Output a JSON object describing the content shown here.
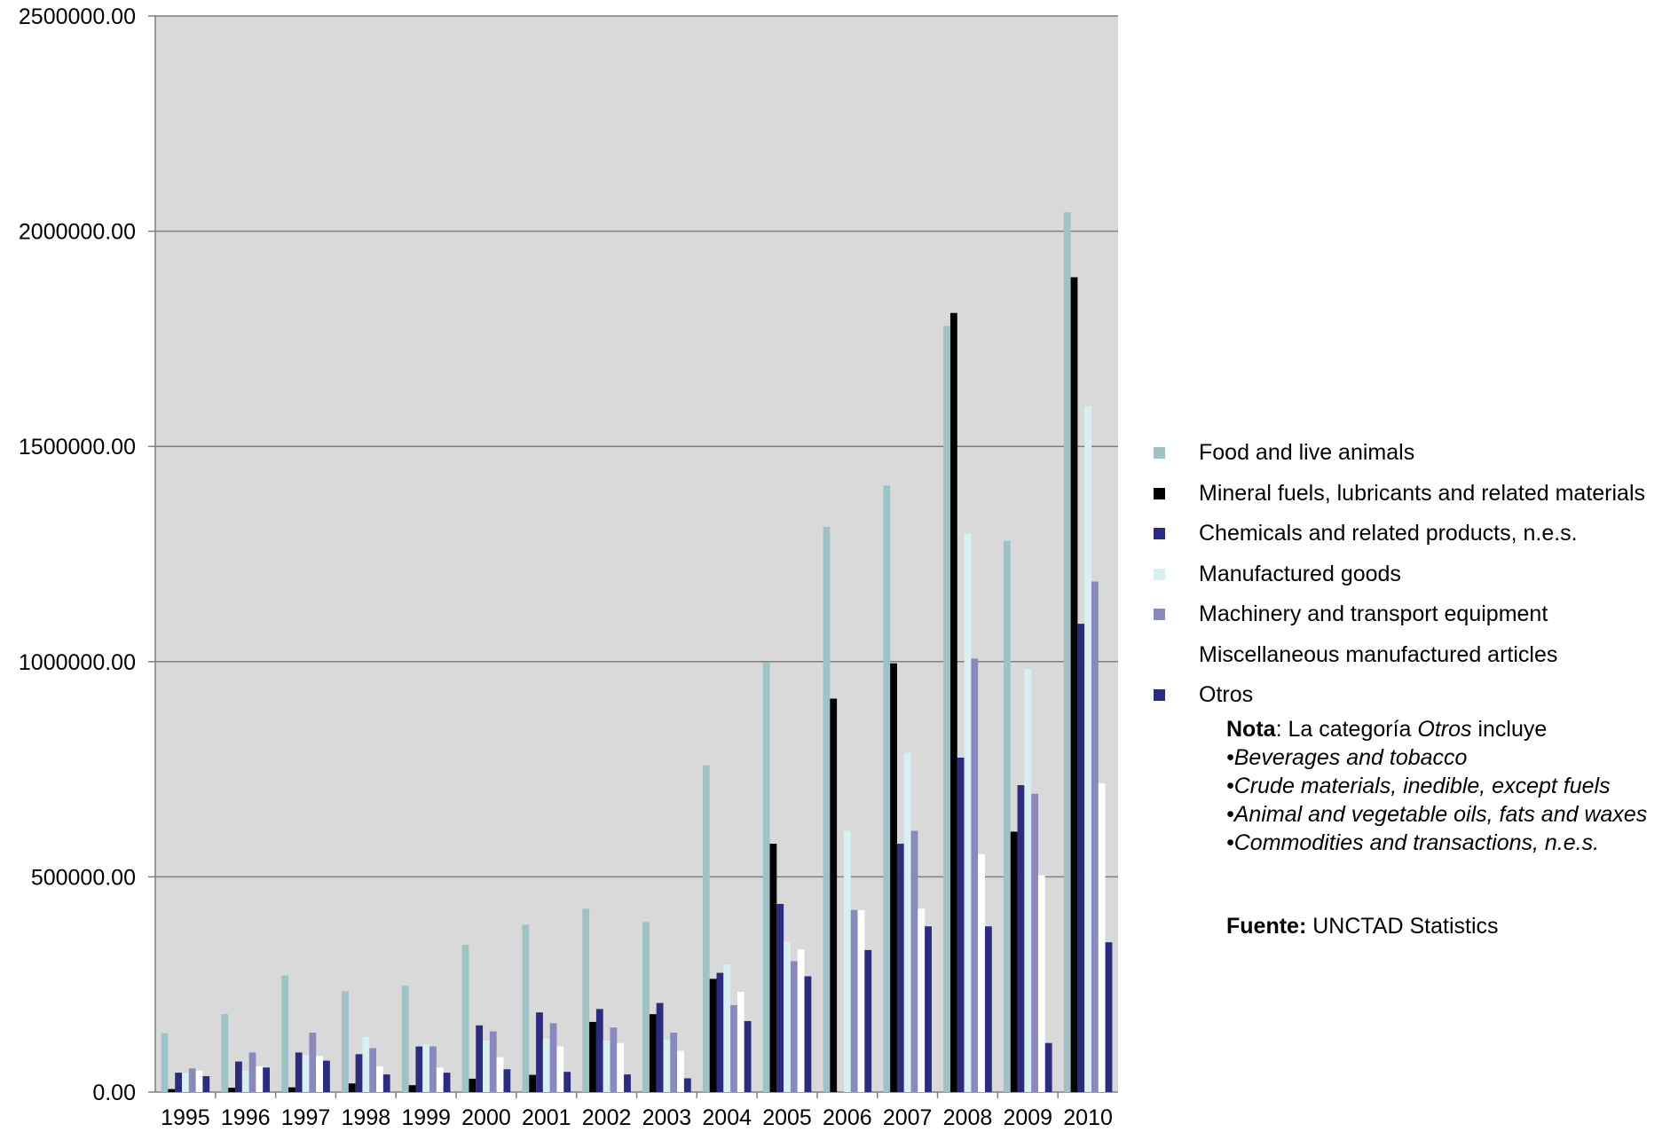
{
  "chart_data": {
    "type": "bar",
    "title": "",
    "xlabel": "",
    "ylabel": "",
    "ylim": [
      0,
      2500000
    ],
    "yticks": [
      "0.00",
      "500000.00",
      "1000000.00",
      "1500000.00",
      "2000000.00",
      "2500000.00"
    ],
    "grid": true,
    "legend_position": "right",
    "plot_background": "#d9d9d9",
    "categories": [
      "1995",
      "1996",
      "1997",
      "1998",
      "1999",
      "2000",
      "2001",
      "2002",
      "2003",
      "2004",
      "2005",
      "2006",
      "2007",
      "2008",
      "2009",
      "2010"
    ],
    "series": [
      {
        "name": "Food and live animals",
        "color": "#9dc3c6",
        "values": [
          137000,
          181000,
          271000,
          234000,
          247000,
          342000,
          389000,
          426000,
          395000,
          759000,
          998000,
          1313000,
          1409000,
          1780000,
          1281000,
          2044000
        ]
      },
      {
        "name": "Mineral fuels, lubricants and related materials",
        "color": "#000000",
        "values": [
          7000,
          10000,
          11000,
          20000,
          16000,
          31000,
          40000,
          163000,
          181000,
          263000,
          577000,
          914000,
          996000,
          1810000,
          605000,
          1893000
        ]
      },
      {
        "name": "Chemicals and related products, n.e.s.",
        "color": "#2b2b7f",
        "values": [
          45000,
          71000,
          92000,
          88000,
          106000,
          155000,
          185000,
          193000,
          207000,
          277000,
          437000,
          0,
          577000,
          777000,
          713000,
          1088000
        ]
      },
      {
        "name": "Manufactured goods",
        "color": "#d8f0f2",
        "values": [
          45000,
          50000,
          86000,
          128000,
          111000,
          120000,
          124000,
          120000,
          121000,
          297000,
          350000,
          607000,
          788000,
          1297000,
          983000,
          1594000
        ]
      },
      {
        "name": "Machinery and transport equipment",
        "color": "#8989bd",
        "values": [
          55000,
          92000,
          138000,
          102000,
          106000,
          141000,
          160000,
          150000,
          138000,
          202000,
          304000,
          423000,
          607000,
          1007000,
          693000,
          1186000
        ]
      },
      {
        "name": "Miscellaneous manufactured articles",
        "color": "#ffffff",
        "values": [
          50000,
          60000,
          84000,
          60000,
          57000,
          81000,
          106000,
          114000,
          96000,
          233000,
          332000,
          423000,
          426000,
          553000,
          504000,
          717000
        ]
      },
      {
        "name": "Otros",
        "color": "#2b2b7f",
        "values": [
          37000,
          57000,
          73000,
          41000,
          45000,
          53000,
          47000,
          41000,
          32000,
          165000,
          269000,
          330000,
          385000,
          385000,
          114000,
          348000
        ]
      }
    ]
  },
  "note": {
    "label_bold": "Nota",
    "text_before": ": La categoría ",
    "text_italic": "Otros",
    "text_after": " incluye",
    "bullets": [
      "•Beverages and tobacco",
      "•Crude materials, inedible, except fuels",
      "•Animal and vegetable oils, fats and waxes",
      "•Commodities and transactions, n.e.s."
    ]
  },
  "source": {
    "label_bold": "Fuente:",
    "text": " UNCTAD Statistics"
  }
}
